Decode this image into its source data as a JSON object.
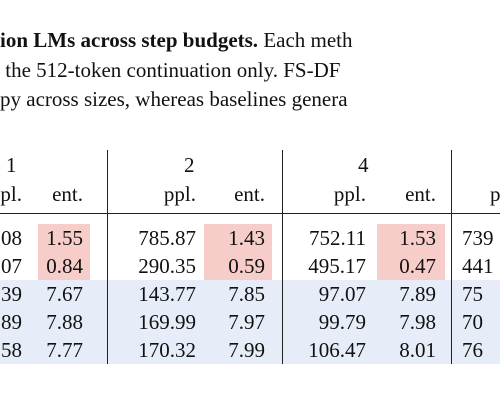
{
  "caption": {
    "lines": [
      {
        "bold": "ion LMs across step budgets.",
        "text": " Each meth"
      },
      {
        "text": " the 512-token continuation only. FS-DF"
      },
      {
        "text": "py across sizes, whereas baselines genera"
      }
    ]
  },
  "table": {
    "groups": [
      "1",
      "2",
      "4"
    ],
    "subheaders": [
      "pl.",
      "ent.",
      "ppl.",
      "ent.",
      "ppl.",
      "ent.",
      "p"
    ],
    "rows": [
      [
        "08",
        "1.55",
        "785.87",
        "1.43",
        "752.11",
        "1.53",
        "739"
      ],
      [
        "07",
        "0.84",
        "290.35",
        "0.59",
        "495.17",
        "0.47",
        "441"
      ],
      [
        "39",
        "7.67",
        "143.77",
        "7.85",
        "97.07",
        "7.89",
        "75"
      ],
      [
        "89",
        "7.88",
        "169.99",
        "7.97",
        "99.79",
        "7.98",
        "70"
      ],
      [
        "58",
        "7.77",
        "170.32",
        "7.99",
        "106.47",
        "8.01",
        "76"
      ]
    ]
  }
}
